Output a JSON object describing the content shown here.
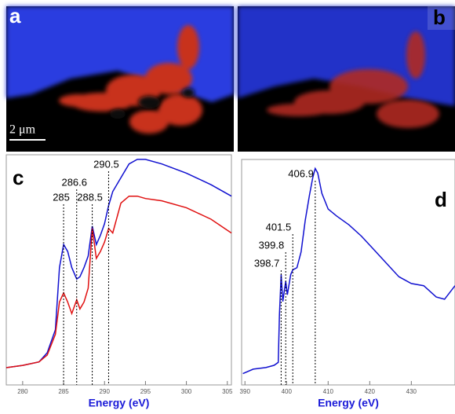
{
  "images": [
    {
      "label": "a",
      "scale_bar": "2 μm"
    },
    {
      "label": "b"
    }
  ],
  "chart_data": [
    {
      "type": "line",
      "panel_label": "c",
      "x_label": "Energy (eV)",
      "x": [
        278,
        280,
        282,
        283,
        284,
        284.5,
        285,
        285.5,
        286,
        286.6,
        287,
        287.5,
        288,
        288.5,
        289,
        289.5,
        290,
        290.5,
        291,
        292,
        293,
        294,
        295,
        297,
        300,
        303,
        305.5
      ],
      "series": [
        {
          "color": "#1010d0",
          "values": [
            0.075,
            0.085,
            0.1,
            0.14,
            0.24,
            0.51,
            0.61,
            0.58,
            0.51,
            0.46,
            0.47,
            0.51,
            0.56,
            0.69,
            0.61,
            0.65,
            0.7,
            0.78,
            0.84,
            0.9,
            0.96,
            0.98,
            0.98,
            0.96,
            0.92,
            0.87,
            0.82
          ]
        },
        {
          "color": "#e01010",
          "values": [
            0.075,
            0.085,
            0.1,
            0.13,
            0.22,
            0.36,
            0.4,
            0.36,
            0.31,
            0.37,
            0.33,
            0.36,
            0.42,
            0.68,
            0.55,
            0.58,
            0.62,
            0.68,
            0.66,
            0.79,
            0.82,
            0.82,
            0.81,
            0.8,
            0.77,
            0.72,
            0.66
          ]
        }
      ],
      "xlim": [
        278,
        305.5
      ],
      "ylim": [
        0,
        1
      ],
      "xticks": [
        280,
        285,
        290,
        295,
        300,
        305
      ],
      "annotations": [
        {
          "label": "285",
          "x": 285
        },
        {
          "label": "286.6",
          "x": 286.6
        },
        {
          "label": "288.5",
          "x": 288.5
        },
        {
          "label": "290.5",
          "x": 290.5
        }
      ]
    },
    {
      "type": "line",
      "panel_label": "d",
      "x_label": "Energy (eV)",
      "x": [
        389.5,
        392,
        395,
        397,
        398,
        398.3,
        398.7,
        399.1,
        399.8,
        400.2,
        401,
        401.5,
        402.5,
        403.5,
        404.5,
        405.5,
        406.3,
        406.9,
        407.5,
        408.5,
        410,
        412,
        415,
        418,
        421,
        424,
        427,
        430,
        433,
        436,
        438,
        440.5
      ],
      "series": [
        {
          "color": "#1010d0",
          "values": [
            0.05,
            0.07,
            0.077,
            0.087,
            0.1,
            0.31,
            0.49,
            0.37,
            0.46,
            0.4,
            0.49,
            0.51,
            0.52,
            0.59,
            0.73,
            0.84,
            0.92,
            0.96,
            0.94,
            0.85,
            0.78,
            0.75,
            0.71,
            0.66,
            0.6,
            0.54,
            0.48,
            0.45,
            0.44,
            0.39,
            0.38,
            0.44
          ]
        }
      ],
      "xlim": [
        389.2,
        440.5
      ],
      "ylim": [
        0,
        1
      ],
      "xticks": [
        390,
        400,
        410,
        420,
        430
      ],
      "annotations": [
        {
          "label": "398.7",
          "x": 398.7
        },
        {
          "label": "399.8",
          "x": 399.8
        },
        {
          "label": "401.5",
          "x": 401.5
        },
        {
          "label": "406.9",
          "x": 406.9
        }
      ]
    }
  ]
}
